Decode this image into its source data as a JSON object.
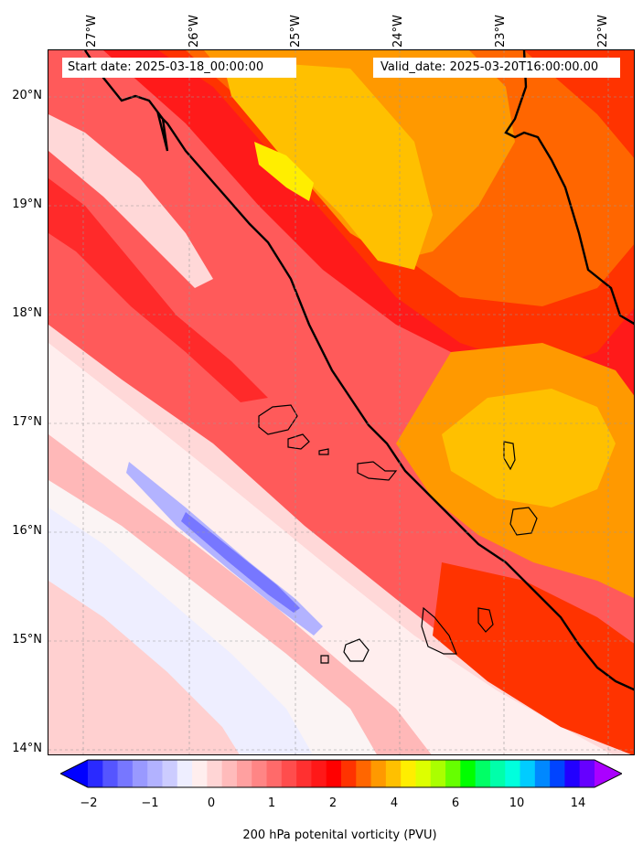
{
  "map": {
    "header_left": "Start date: 2025-03-18_00:00:00",
    "header_right": "Valid_date: 2025-03-20T16:00:00.00",
    "lon_labels": [
      "27°W",
      "26°W",
      "25°W",
      "24°W",
      "23°W",
      "22°W"
    ],
    "lat_labels": [
      "20°N",
      "19°N",
      "18°N",
      "17°N",
      "16°N",
      "15°N",
      "14°N"
    ],
    "lon_values": [
      -27,
      -26,
      -25,
      -24,
      -23,
      -22
    ],
    "lat_values": [
      20,
      19,
      18,
      17,
      16,
      15,
      14
    ],
    "extent": {
      "lon_min": -27.35,
      "lon_max": -21.95,
      "lat_min": 13.95,
      "lat_max": 20.42
    },
    "gridlines": true,
    "islands": [
      "Santo Antão",
      "São Vicente",
      "Santa Luzia",
      "São Nicolau",
      "Sal",
      "Boa Vista",
      "Maio",
      "Santiago",
      "Fogo",
      "Brava"
    ]
  },
  "colorbar": {
    "label": "200 hPa potenital vorticity (PVU)",
    "ticks": [
      "−2",
      "−1",
      "0",
      "1",
      "2",
      "4",
      "6",
      "10",
      "14"
    ],
    "colors": [
      "#0000ff",
      "#2a2aff",
      "#5555ff",
      "#7777ff",
      "#9999ff",
      "#b2b2ff",
      "#ccccff",
      "#eeeeff",
      "#ffeeee",
      "#ffd5d5",
      "#ffbbbb",
      "#ffa0a0",
      "#ff8585",
      "#ff6a6a",
      "#ff4d4d",
      "#ff3030",
      "#ff1818",
      "#ff0000",
      "#ff3300",
      "#ff6600",
      "#ff9900",
      "#ffc000",
      "#ffee00",
      "#ddff00",
      "#aaff00",
      "#66ff00",
      "#00ff00",
      "#00ff66",
      "#00ffaa",
      "#00ffdd",
      "#00ccff",
      "#0088ff",
      "#0044ff",
      "#2200ff",
      "#6600ff",
      "#aa00ff"
    ],
    "extend": "both"
  }
}
